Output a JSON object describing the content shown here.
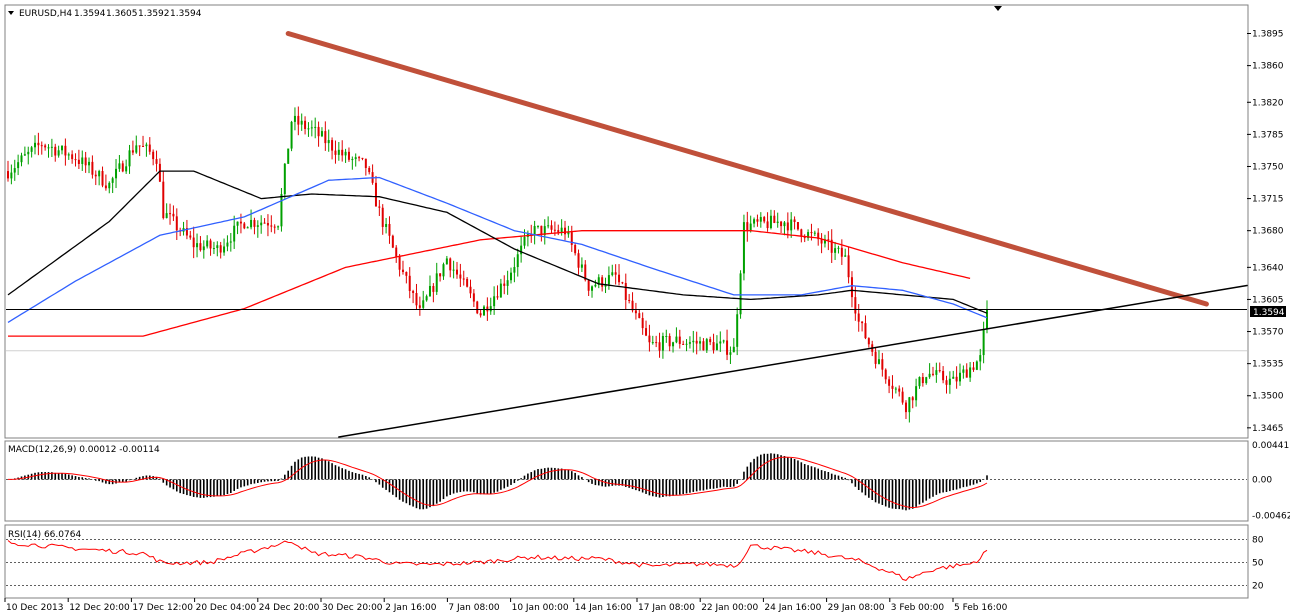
{
  "chart_data": {
    "type": "candlestick",
    "header": {
      "symbol": "EURUSD,H4",
      "open": "1.3594",
      "high": "1.3605",
      "low": "1.3592",
      "close": "1.3594"
    },
    "price_ticks": [
      "1.3895",
      "1.3860",
      "1.3820",
      "1.3785",
      "1.3750",
      "1.3715",
      "1.3680",
      "1.3640",
      "1.3605",
      "1.3570",
      "1.3535",
      "1.3500",
      "1.3465"
    ],
    "price_range": [
      1.3455,
      1.3925
    ],
    "current_price": "1.3594",
    "reference_price": 1.3549,
    "time_labels": [
      "10 Dec 2013",
      "12 Dec 20:00",
      "17 Dec 12:00",
      "20 Dec 04:00",
      "24 Dec 20:00",
      "30 Dec 20:00",
      "2 Jan 16:00",
      "7 Jan 08:00",
      "10 Jan 00:00",
      "14 Jan 16:00",
      "17 Jan 08:00",
      "22 Jan 00:00",
      "24 Jan 16:00",
      "29 Jan 08:00",
      "3 Feb 00:00",
      "5 Feb 16:00"
    ],
    "close_anchors": [
      [
        0,
        1.3745
      ],
      [
        10,
        1.3775
      ],
      [
        20,
        1.376
      ],
      [
        30,
        1.373
      ],
      [
        38,
        1.3775
      ],
      [
        44,
        1.376
      ],
      [
        46,
        1.37
      ],
      [
        55,
        1.3665
      ],
      [
        62,
        1.366
      ],
      [
        70,
        1.369
      ],
      [
        80,
        1.369
      ],
      [
        84,
        1.38
      ],
      [
        90,
        1.379
      ],
      [
        100,
        1.376
      ],
      [
        106,
        1.375
      ],
      [
        110,
        1.37
      ],
      [
        115,
        1.365
      ],
      [
        122,
        1.359
      ],
      [
        130,
        1.365
      ],
      [
        140,
        1.359
      ],
      [
        148,
        1.363
      ],
      [
        155,
        1.368
      ],
      [
        165,
        1.368
      ],
      [
        172,
        1.362
      ],
      [
        180,
        1.363
      ],
      [
        190,
        1.3555
      ],
      [
        198,
        1.356
      ],
      [
        210,
        1.3555
      ],
      [
        215,
        1.355
      ],
      [
        218,
        1.3685
      ],
      [
        230,
        1.369
      ],
      [
        240,
        1.367
      ],
      [
        248,
        1.365
      ],
      [
        252,
        1.358
      ],
      [
        258,
        1.3535
      ],
      [
        266,
        1.349
      ],
      [
        272,
        1.3525
      ],
      [
        280,
        1.3515
      ],
      [
        288,
        1.354
      ],
      [
        290,
        1.3594
      ]
    ],
    "trendlines": [
      {
        "name": "resistance",
        "color": "#c0503a",
        "start": [
          83,
          1.3895
        ],
        "end": [
          355,
          1.36
        ]
      },
      {
        "name": "support",
        "color": "#000000",
        "start": [
          98,
          1.3455
        ],
        "end": [
          370,
          1.3622
        ]
      },
      {
        "name": "horizontal",
        "color": "#000000",
        "price": 1.3594
      }
    ],
    "moving_averages": [
      {
        "color": "#ff0000",
        "anchors": [
          [
            0,
            1.3565
          ],
          [
            40,
            1.3565
          ],
          [
            70,
            1.3595
          ],
          [
            100,
            1.364
          ],
          [
            140,
            1.367
          ],
          [
            170,
            1.368
          ],
          [
            220,
            1.368
          ],
          [
            240,
            1.3672
          ],
          [
            265,
            1.3645
          ],
          [
            285,
            1.3628
          ]
        ]
      },
      {
        "color": "#000000",
        "anchors": [
          [
            0,
            1.361
          ],
          [
            30,
            1.369
          ],
          [
            45,
            1.3745
          ],
          [
            55,
            1.3745
          ],
          [
            75,
            1.3715
          ],
          [
            90,
            1.372
          ],
          [
            110,
            1.3717
          ],
          [
            130,
            1.37
          ],
          [
            150,
            1.366
          ],
          [
            175,
            1.3622
          ],
          [
            200,
            1.361
          ],
          [
            220,
            1.3605
          ],
          [
            240,
            1.361
          ],
          [
            250,
            1.3615
          ],
          [
            265,
            1.361
          ],
          [
            280,
            1.3605
          ],
          [
            290,
            1.359
          ]
        ]
      },
      {
        "color": "#3060ff",
        "anchors": [
          [
            0,
            1.358
          ],
          [
            20,
            1.3625
          ],
          [
            45,
            1.3675
          ],
          [
            70,
            1.3695
          ],
          [
            95,
            1.3735
          ],
          [
            110,
            1.3738
          ],
          [
            130,
            1.371
          ],
          [
            150,
            1.368
          ],
          [
            170,
            1.3665
          ],
          [
            190,
            1.364
          ],
          [
            215,
            1.361
          ],
          [
            235,
            1.361
          ],
          [
            250,
            1.362
          ],
          [
            265,
            1.3615
          ],
          [
            280,
            1.36
          ],
          [
            290,
            1.3585
          ]
        ]
      }
    ],
    "macd": {
      "label": "MACD(12,26,9) 0.00012 -0.00114",
      "ticks": [
        "0.00441",
        "0.00",
        "-0.00462"
      ],
      "range": [
        -0.0052,
        0.0048
      ]
    },
    "rsi": {
      "label": "RSI(14) 66.0764",
      "ticks": [
        "80",
        "50",
        "20"
      ],
      "anchors": [
        [
          0,
          76
        ],
        [
          20,
          68
        ],
        [
          40,
          62
        ],
        [
          46,
          49
        ],
        [
          60,
          50
        ],
        [
          70,
          62
        ],
        [
          84,
          78
        ],
        [
          90,
          62
        ],
        [
          105,
          57
        ],
        [
          115,
          48
        ],
        [
          125,
          47
        ],
        [
          140,
          50
        ],
        [
          155,
          57
        ],
        [
          165,
          55
        ],
        [
          175,
          55
        ],
        [
          190,
          45
        ],
        [
          205,
          48
        ],
        [
          216,
          46
        ],
        [
          220,
          72
        ],
        [
          232,
          66
        ],
        [
          240,
          62
        ],
        [
          252,
          52
        ],
        [
          262,
          36
        ],
        [
          266,
          28
        ],
        [
          275,
          42
        ],
        [
          285,
          48
        ],
        [
          288,
          55
        ],
        [
          290,
          66
        ]
      ]
    }
  }
}
